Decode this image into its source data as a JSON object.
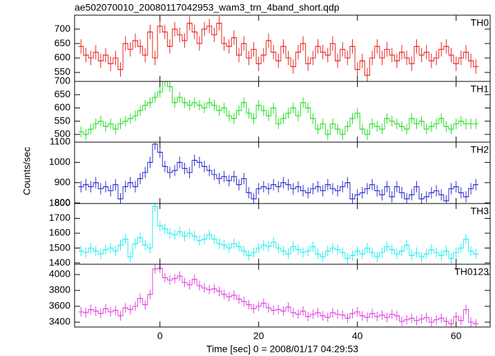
{
  "figure": {
    "title": "ae502070010_20080117042953_wam3_trn_4band_short.qdp",
    "xlabel": "Time [sec] 0 = 2008/01/17 04:29:53",
    "ylabel": "Counts/sec",
    "xlim": [
      -17.3,
      66.9
    ],
    "xticks": [
      0,
      20,
      40,
      60
    ],
    "x": [
      -16,
      -15,
      -14,
      -13,
      -12,
      -11,
      -10,
      -9,
      -8,
      -7,
      -6,
      -5,
      -4,
      -3,
      -2,
      -1,
      0,
      1,
      2,
      3,
      4,
      5,
      6,
      7,
      8,
      9,
      10,
      11,
      12,
      13,
      14,
      15,
      16,
      17,
      18,
      19,
      20,
      21,
      22,
      23,
      24,
      25,
      26,
      27,
      28,
      29,
      30,
      31,
      32,
      33,
      34,
      35,
      36,
      37,
      38,
      39,
      40,
      41,
      42,
      43,
      44,
      45,
      46,
      47,
      48,
      49,
      50,
      51,
      52,
      53,
      54,
      55,
      56,
      57,
      58,
      59,
      60,
      61,
      62,
      63,
      64
    ]
  },
  "chart_data": [
    {
      "type": "step",
      "label": "TH0",
      "color": "#e8221e",
      "ylim": [
        519,
        748
      ],
      "yticks": [
        550,
        600,
        650,
        700
      ],
      "error": 25,
      "values": [
        640,
        610,
        600,
        620,
        590,
        610,
        580,
        600,
        560,
        650,
        630,
        660,
        640,
        610,
        690,
        600,
        710,
        690,
        640,
        700,
        680,
        660,
        720,
        690,
        650,
        700,
        710,
        680,
        720,
        650,
        640,
        670,
        610,
        650,
        600,
        630,
        580,
        610,
        660,
        620,
        590,
        640,
        600,
        570,
        620,
        650,
        580,
        600,
        640,
        620,
        610,
        650,
        590,
        630,
        600,
        640,
        560,
        590,
        540,
        600,
        640,
        600,
        630,
        610,
        590,
        620,
        600,
        580,
        640,
        610,
        620,
        590,
        600,
        630,
        640,
        610,
        580,
        600,
        620,
        590,
        570
      ]
    },
    {
      "type": "step",
      "label": "TH1",
      "color": "#22dd22",
      "ylim": [
        471,
        700
      ],
      "yticks": [
        500,
        550,
        600,
        650,
        700
      ],
      "error": 20,
      "values": [
        510,
        500,
        520,
        540,
        550,
        530,
        540,
        520,
        540,
        550,
        560,
        570,
        590,
        610,
        620,
        640,
        660,
        700,
        680,
        620,
        640,
        620,
        610,
        620,
        610,
        600,
        620,
        610,
        590,
        600,
        570,
        560,
        590,
        620,
        580,
        560,
        610,
        590,
        570,
        600,
        540,
        560,
        580,
        600,
        570,
        620,
        600,
        560,
        520,
        540,
        500,
        540,
        520,
        500,
        530,
        560,
        580,
        520,
        500,
        540,
        530,
        520,
        560,
        550,
        540,
        530,
        520,
        560,
        540,
        550,
        520,
        530,
        540,
        560,
        530,
        520,
        540,
        550,
        540,
        540,
        540
      ]
    },
    {
      "type": "step",
      "label": "TH2",
      "color": "#2a2acc",
      "ylim": [
        797,
        1100
      ],
      "yticks": [
        800,
        900,
        1000,
        1100
      ],
      "error": 28,
      "values": [
        880,
        890,
        880,
        900,
        870,
        880,
        860,
        890,
        820,
        880,
        900,
        880,
        920,
        950,
        1000,
        1090,
        1050,
        980,
        950,
        960,
        1000,
        970,
        950,
        1010,
        1000,
        980,
        960,
        940,
        920,
        930,
        910,
        930,
        890,
        920,
        850,
        820,
        870,
        880,
        870,
        890,
        880,
        900,
        890,
        870,
        880,
        860,
        850,
        870,
        880,
        860,
        890,
        870,
        860,
        880,
        900,
        820,
        840,
        850,
        870,
        890,
        860,
        840,
        880,
        830,
        880,
        850,
        820,
        840,
        880,
        820,
        830,
        850,
        860,
        840,
        810,
        870,
        880,
        850,
        830,
        870,
        890
      ]
    },
    {
      "type": "step",
      "label": "TH3",
      "color": "#22eeee",
      "ylim": [
        1391,
        1800
      ],
      "yticks": [
        1400,
        1500,
        1600,
        1700,
        1800
      ],
      "error": 35,
      "values": [
        1480,
        1470,
        1500,
        1480,
        1460,
        1490,
        1500,
        1480,
        1520,
        1560,
        1440,
        1530,
        1570,
        1520,
        1500,
        1780,
        1650,
        1630,
        1600,
        1590,
        1610,
        1580,
        1600,
        1580,
        1550,
        1560,
        1590,
        1560,
        1530,
        1520,
        1500,
        1530,
        1510,
        1480,
        1450,
        1470,
        1500,
        1520,
        1510,
        1540,
        1500,
        1480,
        1460,
        1510,
        1490,
        1470,
        1480,
        1510,
        1460,
        1440,
        1480,
        1500,
        1490,
        1470,
        1430,
        1450,
        1480,
        1460,
        1500,
        1470,
        1440,
        1470,
        1510,
        1490,
        1460,
        1480,
        1520,
        1450,
        1470,
        1440,
        1460,
        1490,
        1470,
        1450,
        1480,
        1430,
        1470,
        1500,
        1560,
        1480,
        1460
      ]
    },
    {
      "type": "step",
      "label": "TH0123",
      "color": "#e040e0",
      "ylim": [
        3339,
        4130
      ],
      "yticks": [
        3400,
        3600,
        3800,
        4000
      ],
      "error": 60,
      "values": [
        3530,
        3520,
        3560,
        3540,
        3510,
        3570,
        3530,
        3550,
        3480,
        3580,
        3560,
        3600,
        3700,
        3620,
        3750,
        4070,
        4080,
        3960,
        3930,
        3950,
        3980,
        3900,
        3870,
        3940,
        3860,
        3830,
        3810,
        3820,
        3790,
        3750,
        3720,
        3740,
        3690,
        3660,
        3620,
        3570,
        3600,
        3640,
        3580,
        3550,
        3560,
        3540,
        3590,
        3520,
        3500,
        3540,
        3470,
        3500,
        3520,
        3480,
        3460,
        3520,
        3500,
        3490,
        3450,
        3510,
        3530,
        3480,
        3460,
        3510,
        3470,
        3490,
        3460,
        3500,
        3480,
        3410,
        3430,
        3450,
        3420,
        3440,
        3460,
        3400,
        3430,
        3450,
        3410,
        3380,
        3470,
        3420,
        3560,
        3400,
        3380
      ]
    }
  ]
}
